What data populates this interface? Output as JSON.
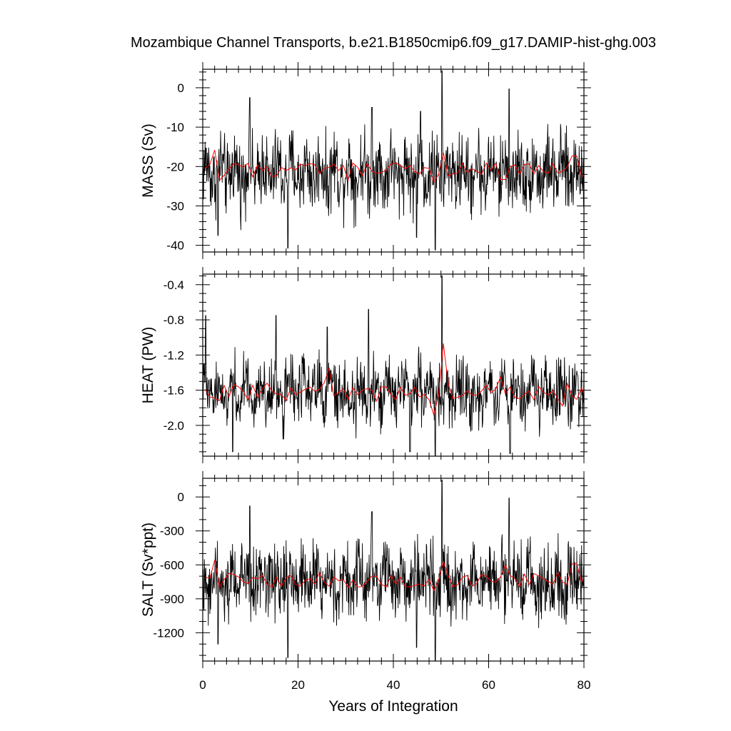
{
  "title": "Mozambique Channel Transports, b.e21.B1850cmip6.f09_g17.DAMIP-hist-ghg.003",
  "xlabel": "Years of Integration",
  "colors": {
    "monthly": "#000000",
    "annual": "#ff0000",
    "axis": "#000000"
  },
  "chart_data": [
    {
      "type": "line",
      "ylabel": "MASS (Sv)",
      "xlim": [
        0,
        80
      ],
      "ylim": [
        -41.7,
        4.7
      ],
      "x_ticks": [
        "0",
        "20",
        "40",
        "60",
        "80"
      ],
      "y_ticks": [
        "0",
        "-10",
        "-20",
        "-30",
        "-40"
      ],
      "monthly": {
        "mean": -21.5,
        "amp": 7.2,
        "min": -41.2,
        "max": 4.3,
        "peaks": [
          [
            9.9,
            -2.5
          ],
          [
            50.2,
            4.3
          ],
          [
            64.3,
            -0.3
          ],
          [
            35.5,
            -5.0
          ],
          [
            45.7,
            -6.0
          ]
        ],
        "troughs": [
          [
            17.9,
            -40.7
          ],
          [
            48.8,
            -41.2
          ],
          [
            3.2,
            -37.5
          ],
          [
            44.9,
            -38.0
          ]
        ]
      },
      "annual": {
        "mean": -21.0,
        "amp": 1.6,
        "peaks": [
          [
            2.5,
            -15.8
          ],
          [
            50.5,
            -16.5
          ],
          [
            78.0,
            -17.3
          ],
          [
            63.5,
            -18.0
          ]
        ],
        "troughs": [
          [
            3.5,
            -23.5
          ],
          [
            30.5,
            -23.5
          ],
          [
            48.5,
            -24.0
          ],
          [
            63.0,
            -23.3
          ]
        ]
      }
    },
    {
      "type": "line",
      "ylabel": "HEAT (PW)",
      "xlim": [
        0,
        80
      ],
      "ylim": [
        -2.35,
        -0.28
      ],
      "x_ticks": [
        "0",
        "20",
        "40",
        "60",
        "80"
      ],
      "y_ticks": [
        "-0.4",
        "-0.8",
        "-1.2",
        "-1.6",
        "-2.0"
      ],
      "monthly": {
        "mean": -1.62,
        "amp": 0.28,
        "min": -2.35,
        "max": -0.3,
        "peaks": [
          [
            50.2,
            -0.3
          ],
          [
            34.8,
            -0.68
          ],
          [
            15.4,
            -0.75
          ],
          [
            0.6,
            -0.75
          ],
          [
            26.1,
            -0.88
          ]
        ],
        "troughs": [
          [
            48.8,
            -2.35
          ],
          [
            6.3,
            -2.3
          ],
          [
            64.5,
            -2.32
          ],
          [
            43.5,
            -2.3
          ]
        ]
      },
      "annual": {
        "mean": -1.62,
        "amp": 0.09,
        "peaks": [
          [
            26.4,
            -1.35
          ],
          [
            50.5,
            -1.07
          ],
          [
            62.5,
            -1.45
          ]
        ],
        "troughs": [
          [
            3.5,
            -1.72
          ],
          [
            48.5,
            -1.88
          ],
          [
            75.5,
            -1.78
          ]
        ]
      }
    },
    {
      "type": "line",
      "ylabel": "SALT (Sv*ppt)",
      "xlim": [
        0,
        80
      ],
      "ylim": [
        -1450,
        165
      ],
      "x_ticks": [
        "0",
        "20",
        "40",
        "60",
        "80"
      ],
      "y_ticks": [
        "0",
        "-300",
        "-600",
        "-900",
        "-1200"
      ],
      "monthly": {
        "mean": -740,
        "amp": 250,
        "min": -1445,
        "max": 150,
        "peaks": [
          [
            50.2,
            150
          ],
          [
            9.9,
            -80
          ],
          [
            64.3,
            -10
          ],
          [
            35.5,
            -130
          ]
        ],
        "troughs": [
          [
            48.8,
            -1445
          ],
          [
            17.9,
            -1420
          ],
          [
            44.9,
            -1330
          ],
          [
            3.2,
            -1300
          ]
        ]
      },
      "annual": {
        "mean": -730,
        "amp": 55,
        "peaks": [
          [
            2.5,
            -560
          ],
          [
            50.5,
            -570
          ],
          [
            78.0,
            -590
          ],
          [
            63.5,
            -600
          ]
        ],
        "troughs": [
          [
            3.5,
            -800
          ],
          [
            30.5,
            -800
          ],
          [
            48.5,
            -830
          ]
        ]
      }
    }
  ]
}
